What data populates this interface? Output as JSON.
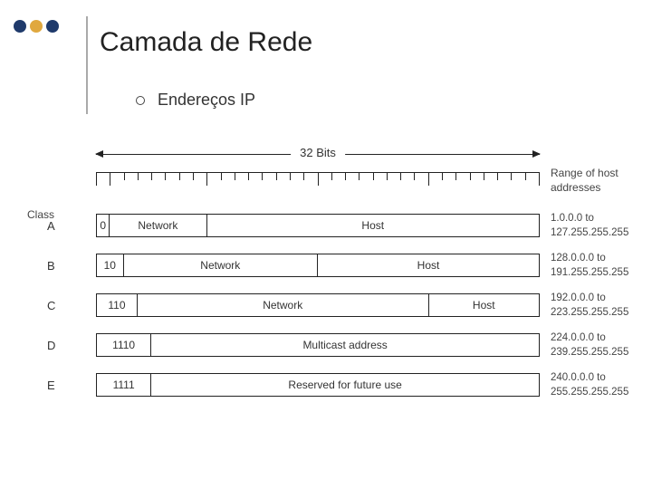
{
  "accent_colors": {
    "dark_blue": "#1f3a6b",
    "gold": "#e0a83f"
  },
  "title": "Camada de Rede",
  "bullet": "Endereços IP",
  "bits_label": "32 Bits",
  "class_header": "Class",
  "range_header_l1": "Range of host",
  "range_header_l2": "addresses",
  "ruler_ticks": 32,
  "major_every": 8,
  "classes": [
    {
      "name": "A",
      "segments": [
        {
          "label": "0",
          "width_pct": 3.125
        },
        {
          "label": "Network",
          "width_pct": 21.875
        },
        {
          "label": "Host",
          "width_pct": 75
        }
      ],
      "range_l1": "1.0.0.0 to",
      "range_l2": "127.255.255.255"
    },
    {
      "name": "B",
      "segments": [
        {
          "label": "10",
          "width_pct": 6.25
        },
        {
          "label": "Network",
          "width_pct": 43.75
        },
        {
          "label": "Host",
          "width_pct": 50
        }
      ],
      "range_l1": "128.0.0.0 to",
      "range_l2": "191.255.255.255"
    },
    {
      "name": "C",
      "segments": [
        {
          "label": "110",
          "width_pct": 9.375
        },
        {
          "label": "Network",
          "width_pct": 65.625
        },
        {
          "label": "Host",
          "width_pct": 25
        }
      ],
      "range_l1": "192.0.0.0 to",
      "range_l2": "223.255.255.255"
    },
    {
      "name": "D",
      "segments": [
        {
          "label": "1110",
          "width_pct": 12.5
        },
        {
          "label": "Multicast address",
          "width_pct": 87.5
        }
      ],
      "range_l1": "224.0.0.0 to",
      "range_l2": "239.255.255.255"
    },
    {
      "name": "E",
      "segments": [
        {
          "label": "1111",
          "width_pct": 12.5
        },
        {
          "label": "Reserved for future use",
          "width_pct": 87.5
        }
      ],
      "range_l1": "240.0.0.0 to",
      "range_l2": "255.255.255.255"
    }
  ]
}
